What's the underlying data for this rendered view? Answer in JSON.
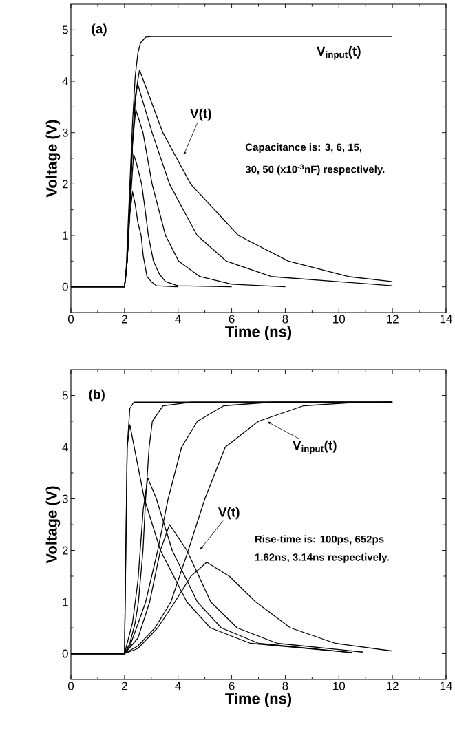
{
  "chart_data": [
    {
      "type": "line",
      "xlabel": "Time (ns)",
      "ylabel": "Voltage (V)",
      "xlim": [
        0,
        14
      ],
      "ylim": [
        -0.5,
        5.5
      ],
      "xticks": [
        0,
        2,
        4,
        6,
        8,
        10,
        12,
        14
      ],
      "yticks": [
        0,
        1,
        2,
        3,
        4,
        5
      ],
      "marker": "none",
      "line_style": "solid",
      "series": [
        {
          "color": "#000000",
          "x": [
            0,
            2,
            2.05,
            2.1,
            2.2,
            2.3,
            2.4,
            2.5,
            2.6,
            2.8,
            3,
            12
          ],
          "values": [
            0,
            0,
            0.2,
            0.8,
            2.0,
            3.2,
            4.1,
            4.55,
            4.75,
            4.86,
            4.87,
            4.87
          ]
        },
        {
          "color": "#000000",
          "x": [
            0,
            2,
            2.1,
            2.2,
            2.3,
            2.4,
            2.5,
            2.62,
            2.7,
            2.84,
            3.0,
            3.2,
            4
          ],
          "values": [
            0,
            0,
            0.5,
            1.4,
            1.85,
            1.6,
            1.25,
            1.0,
            0.6,
            0.2,
            0.1,
            0.02,
            0
          ]
        },
        {
          "color": "#000000",
          "x": [
            0,
            2,
            2.1,
            2.2,
            2.34,
            2.45,
            2.64,
            2.77,
            2.89,
            3.08,
            3.3,
            3.53,
            4,
            6
          ],
          "values": [
            0,
            0,
            0.5,
            1.5,
            2.58,
            2.4,
            2.0,
            1.5,
            1.0,
            0.5,
            0.25,
            0.1,
            0.02,
            0
          ]
        },
        {
          "color": "#000000",
          "x": [
            0,
            2,
            2.1,
            2.2,
            2.3,
            2.42,
            2.69,
            3.03,
            3.53,
            4.02,
            4.81,
            6.0,
            8
          ],
          "values": [
            0,
            0,
            0.5,
            1.6,
            2.8,
            3.45,
            3.0,
            2.0,
            1.0,
            0.5,
            0.2,
            0.05,
            0
          ]
        },
        {
          "color": "#000000",
          "x": [
            0,
            2,
            2.1,
            2.2,
            2.3,
            2.4,
            2.49,
            3.03,
            3.68,
            4.71,
            5.8,
            7.48,
            12
          ],
          "values": [
            0,
            0,
            0.5,
            1.6,
            2.8,
            3.6,
            3.95,
            3.0,
            2.0,
            1.0,
            0.5,
            0.2,
            0.02
          ]
        },
        {
          "color": "#000000",
          "x": [
            0,
            2,
            2.1,
            2.2,
            2.3,
            2.4,
            2.56,
            3.43,
            4.47,
            6.25,
            8.12,
            10.35,
            12
          ],
          "values": [
            0,
            0,
            0.5,
            1.6,
            2.8,
            3.7,
            4.22,
            3.0,
            2.0,
            1.0,
            0.5,
            0.2,
            0.1
          ]
        }
      ],
      "annotations": [
        "(a)",
        "V$_{input}$(t)",
        "V(t)",
        "Capacitance is: 3, 6, 15,",
        "30, 50 (x10$^{-3}$nF) respectively."
      ]
    },
    {
      "type": "line",
      "xlabel": "Time (ns)",
      "ylabel": "Voltage (V)",
      "xlim": [
        0,
        14
      ],
      "ylim": [
        -0.5,
        5.5
      ],
      "xticks": [
        0,
        2,
        4,
        6,
        8,
        10,
        12,
        14
      ],
      "yticks": [
        0,
        1,
        2,
        3,
        4,
        5
      ],
      "marker": "none",
      "line_style": "solid",
      "series": [
        {
          "color": "#000000",
          "x": [
            0,
            2,
            2.05,
            2.1,
            2.2,
            2.35,
            12
          ],
          "values": [
            0,
            0,
            2.0,
            4.0,
            4.75,
            4.87,
            4.87
          ]
        },
        {
          "color": "#000000",
          "x": [
            0,
            2,
            2.2,
            2.4,
            2.52,
            2.69,
            2.79,
            2.92,
            3.04,
            3.44,
            4.5,
            12
          ],
          "values": [
            0,
            0,
            0.2,
            0.6,
            1.0,
            2.0,
            3.0,
            4.0,
            4.5,
            4.8,
            4.87,
            4.87
          ]
        },
        {
          "color": "#000000",
          "x": [
            0,
            2,
            2.2,
            2.45,
            2.79,
            3.24,
            3.63,
            4.13,
            4.72,
            5.7,
            7.5,
            12
          ],
          "values": [
            0,
            0,
            0.15,
            0.5,
            1.0,
            2.0,
            3.0,
            4.0,
            4.5,
            4.8,
            4.87,
            4.87
          ]
        },
        {
          "color": "#000000",
          "x": [
            0,
            2,
            2.5,
            3.14,
            3.73,
            4.38,
            5.0,
            5.76,
            7.0,
            8.68,
            10.5,
            12
          ],
          "values": [
            0,
            0,
            0.15,
            0.5,
            1.0,
            2.0,
            3.0,
            4.0,
            4.5,
            4.8,
            4.86,
            4.87
          ]
        },
        {
          "color": "#000000",
          "x": [
            0,
            2,
            2.05,
            2.1,
            2.2,
            2.74,
            3.34,
            4.33,
            5.2,
            6.7,
            10.5
          ],
          "values": [
            0,
            0,
            2.0,
            4.0,
            4.43,
            3.0,
            2.0,
            1.0,
            0.5,
            0.2,
            0.02
          ]
        },
        {
          "color": "#000000",
          "x": [
            0,
            2,
            2.3,
            2.5,
            2.7,
            2.87,
            3.19,
            3.78,
            4.72,
            5.61,
            7.0,
            10.5
          ],
          "values": [
            0,
            0,
            0.6,
            1.4,
            2.8,
            3.4,
            3.0,
            2.0,
            1.0,
            0.5,
            0.2,
            0.02
          ]
        },
        {
          "color": "#000000",
          "x": [
            0,
            2,
            2.5,
            2.94,
            3.34,
            3.68,
            4.33,
            5.22,
            6.2,
            7.7,
            10.9
          ],
          "values": [
            0,
            0,
            0.3,
            1.0,
            2.0,
            2.5,
            2.0,
            1.0,
            0.5,
            0.2,
            0.03
          ]
        },
        {
          "color": "#000000",
          "x": [
            0,
            2,
            2.5,
            3.24,
            3.88,
            4.48,
            5.07,
            5.91,
            6.9,
            8.19,
            9.87,
            12
          ],
          "values": [
            0,
            0,
            0.1,
            0.5,
            1.0,
            1.5,
            1.77,
            1.5,
            1.0,
            0.5,
            0.2,
            0.05
          ]
        }
      ],
      "annotations": [
        "(b)",
        "V$_{input}$(t)",
        "V(t)",
        "Rise-time is: 100ps, 652ps",
        "1.62ns, 3.14ns respectively."
      ]
    }
  ]
}
